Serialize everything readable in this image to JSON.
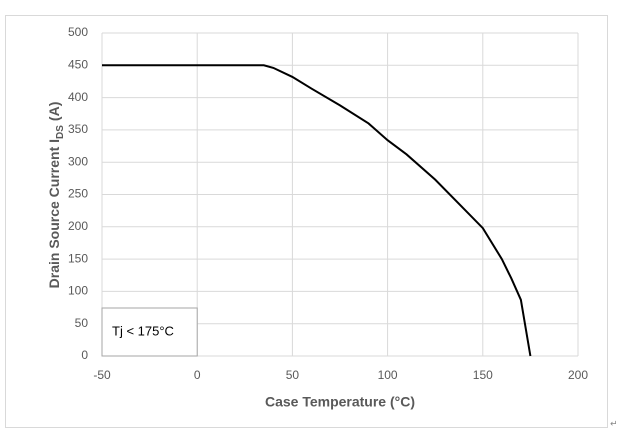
{
  "chart_data": {
    "type": "line",
    "x_label": "Case Temperature (°C)",
    "y_label": {
      "main": "Drain Source Current I",
      "subscript": "DS",
      "unit": "(A)"
    },
    "annotation": "Tj < 175°C",
    "series": [
      {
        "color": "#000000",
        "x": [
          -50,
          35,
          40,
          50,
          60,
          75,
          90,
          100,
          110,
          125,
          140,
          150,
          160,
          165,
          170,
          175
        ],
        "values": [
          450,
          450,
          446,
          432,
          414,
          388,
          360,
          334,
          312,
          273,
          228,
          198,
          150,
          120,
          87,
          0
        ]
      }
    ],
    "xlim": [
      -50,
      200
    ],
    "xticks": [
      -50,
      0,
      50,
      100,
      150,
      200
    ],
    "ylim": [
      0,
      500
    ],
    "yticks": [
      0,
      50,
      100,
      150,
      200,
      250,
      300,
      350,
      400,
      450,
      500
    ],
    "grid": true,
    "paragraph_mark": "↵"
  }
}
